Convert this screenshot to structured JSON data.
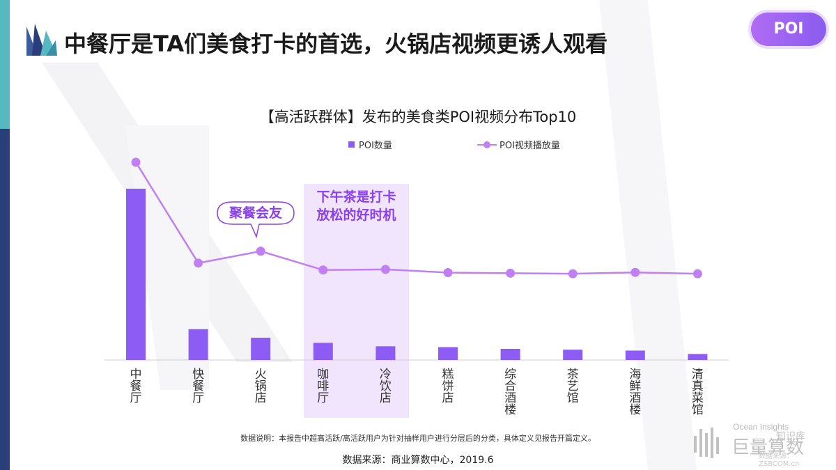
{
  "header": {
    "title": "中餐厅是TA们美食打卡的首选，火锅店视频更诱人观看",
    "badge": "POI"
  },
  "colors": {
    "accent_purple": "#8c5cf5",
    "line_purple": "#c07ff2",
    "highlight_text": "#8a3ff0",
    "left_bar_teal": "#56b9c2",
    "left_bar_navy": "#2a3f7a"
  },
  "chart_data": {
    "type": "bar",
    "title": "【高活跃群体】发布的美食类POI视频分布Top10",
    "categories": [
      "中餐厅",
      "快餐厅",
      "火锅店",
      "咖啡厅",
      "冷饮店",
      "糕饼店",
      "综合酒楼",
      "茶艺馆",
      "海鲜酒楼",
      "清真菜馆"
    ],
    "series": [
      {
        "name": "POI数量",
        "kind": "bar",
        "values": [
          100,
          18,
          13,
          10,
          8,
          7.5,
          6.5,
          6,
          5.5,
          3.5
        ]
      },
      {
        "name": "POI视频播放量",
        "kind": "line",
        "values": [
          100,
          49,
          55,
          45.5,
          45.8,
          44.2,
          43.9,
          43.6,
          44.3,
          43.6
        ]
      }
    ],
    "ylim": [
      0,
      105
    ],
    "legend": "top-center",
    "grid": false,
    "annotations": [
      {
        "text": "聚餐会友",
        "target": "火锅店"
      },
      {
        "text": "下午茶是打卡放松的好时机",
        "line1": "下午茶是打卡",
        "line2": "放松的好时机",
        "target": [
          "咖啡厅",
          "冷饮店"
        ]
      }
    ]
  },
  "footer": {
    "note": "数据说明：本报告中超高活跃/高活跃用户为针对抽样用户进行分层后的分类，具体定义见报告开篇定义。",
    "source": "数据来源：商业算数中心，2019.6"
  },
  "watermark": {
    "line1": "Ocean Insights",
    "line2": "巨量算数",
    "line3": "知识库",
    "line4": "数据来源：ZSBCOM.cn"
  }
}
